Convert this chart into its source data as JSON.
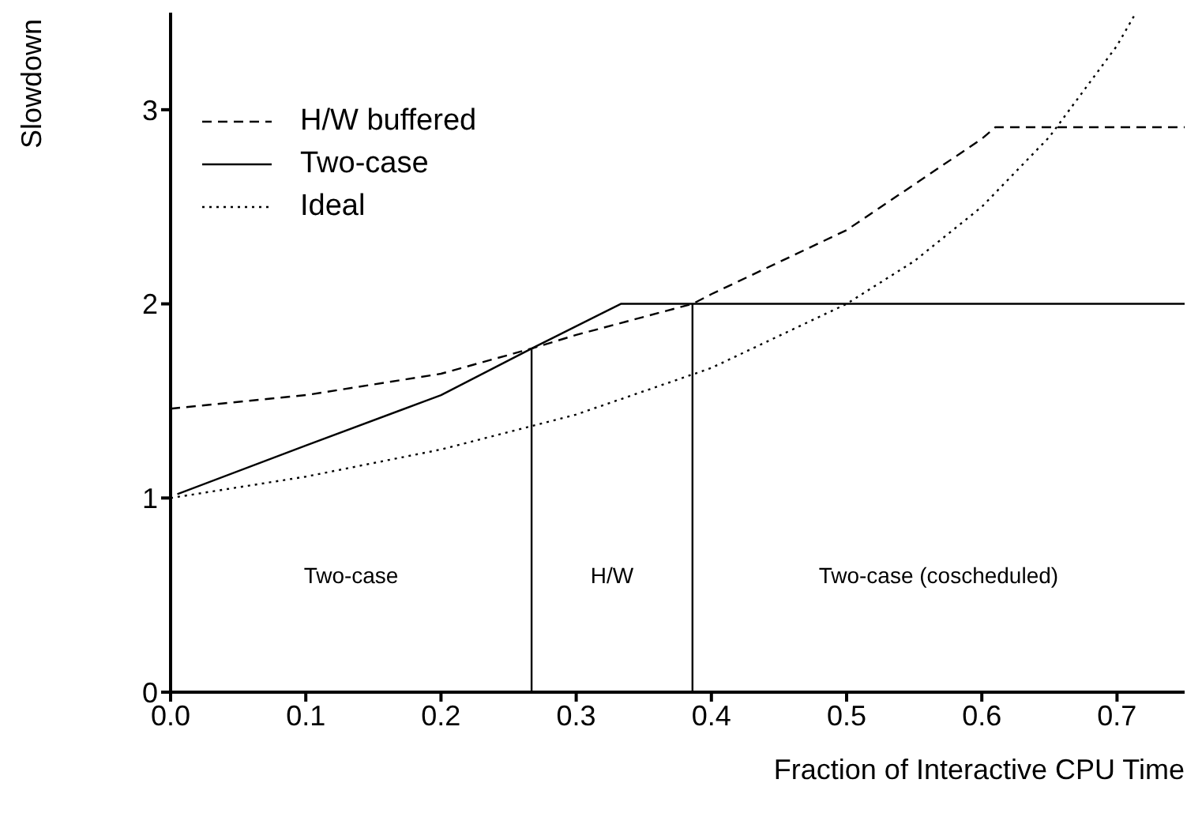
{
  "chart_data": {
    "type": "line",
    "xlabel": "Fraction of Interactive CPU Time",
    "ylabel": "Slowdown",
    "xlim": [
      0,
      0.75
    ],
    "ylim": [
      0,
      3.5
    ],
    "xticks": [
      {
        "value": 0,
        "label": "0.0"
      },
      0.1,
      0.2,
      0.3,
      0.4,
      0.5,
      0.6,
      0.7
    ],
    "yticks": [
      0,
      1,
      2,
      3
    ],
    "grid": false,
    "legend": "top left",
    "marker": "none",
    "series": [
      {
        "name": "H/W buffered",
        "color": "#000000",
        "line_style": "dashed",
        "x": [
          0,
          0.1,
          0.2,
          0.267,
          0.3,
          0.386,
          0.4,
          0.5,
          0.6,
          0.61,
          0.75
        ],
        "values": [
          1.46,
          1.53,
          1.64,
          1.77,
          1.84,
          2.0,
          2.05,
          2.38,
          2.85,
          2.91,
          2.91
        ]
      },
      {
        "name": "Two-case",
        "color": "#000000",
        "line_style": "solid",
        "x": [
          0.005,
          0.1,
          0.2,
          0.267,
          0.333,
          0.75
        ],
        "values": [
          1.02,
          1.27,
          1.53,
          1.77,
          2.0,
          2.0
        ]
      },
      {
        "name": "Ideal",
        "color": "#000000",
        "line_style": "dotted",
        "x": [
          0,
          0.1,
          0.2,
          0.3,
          0.4,
          0.5,
          0.55,
          0.6,
          0.65,
          0.7,
          0.714
        ],
        "values": [
          1.0,
          1.11,
          1.25,
          1.43,
          1.67,
          2.0,
          2.22,
          2.5,
          2.86,
          3.33,
          3.5
        ]
      },
      {
        "color": "#000000",
        "line_style": "solid",
        "x": [
          0.267,
          0.267
        ],
        "values": [
          0,
          1.77
        ]
      },
      {
        "color": "#000000",
        "line_style": "solid",
        "x": [
          0.386,
          0.386
        ],
        "values": [
          0,
          2.0
        ]
      }
    ],
    "annotations": [
      "Two-case",
      "H/W",
      "Two-case (coscheduled)"
    ]
  }
}
